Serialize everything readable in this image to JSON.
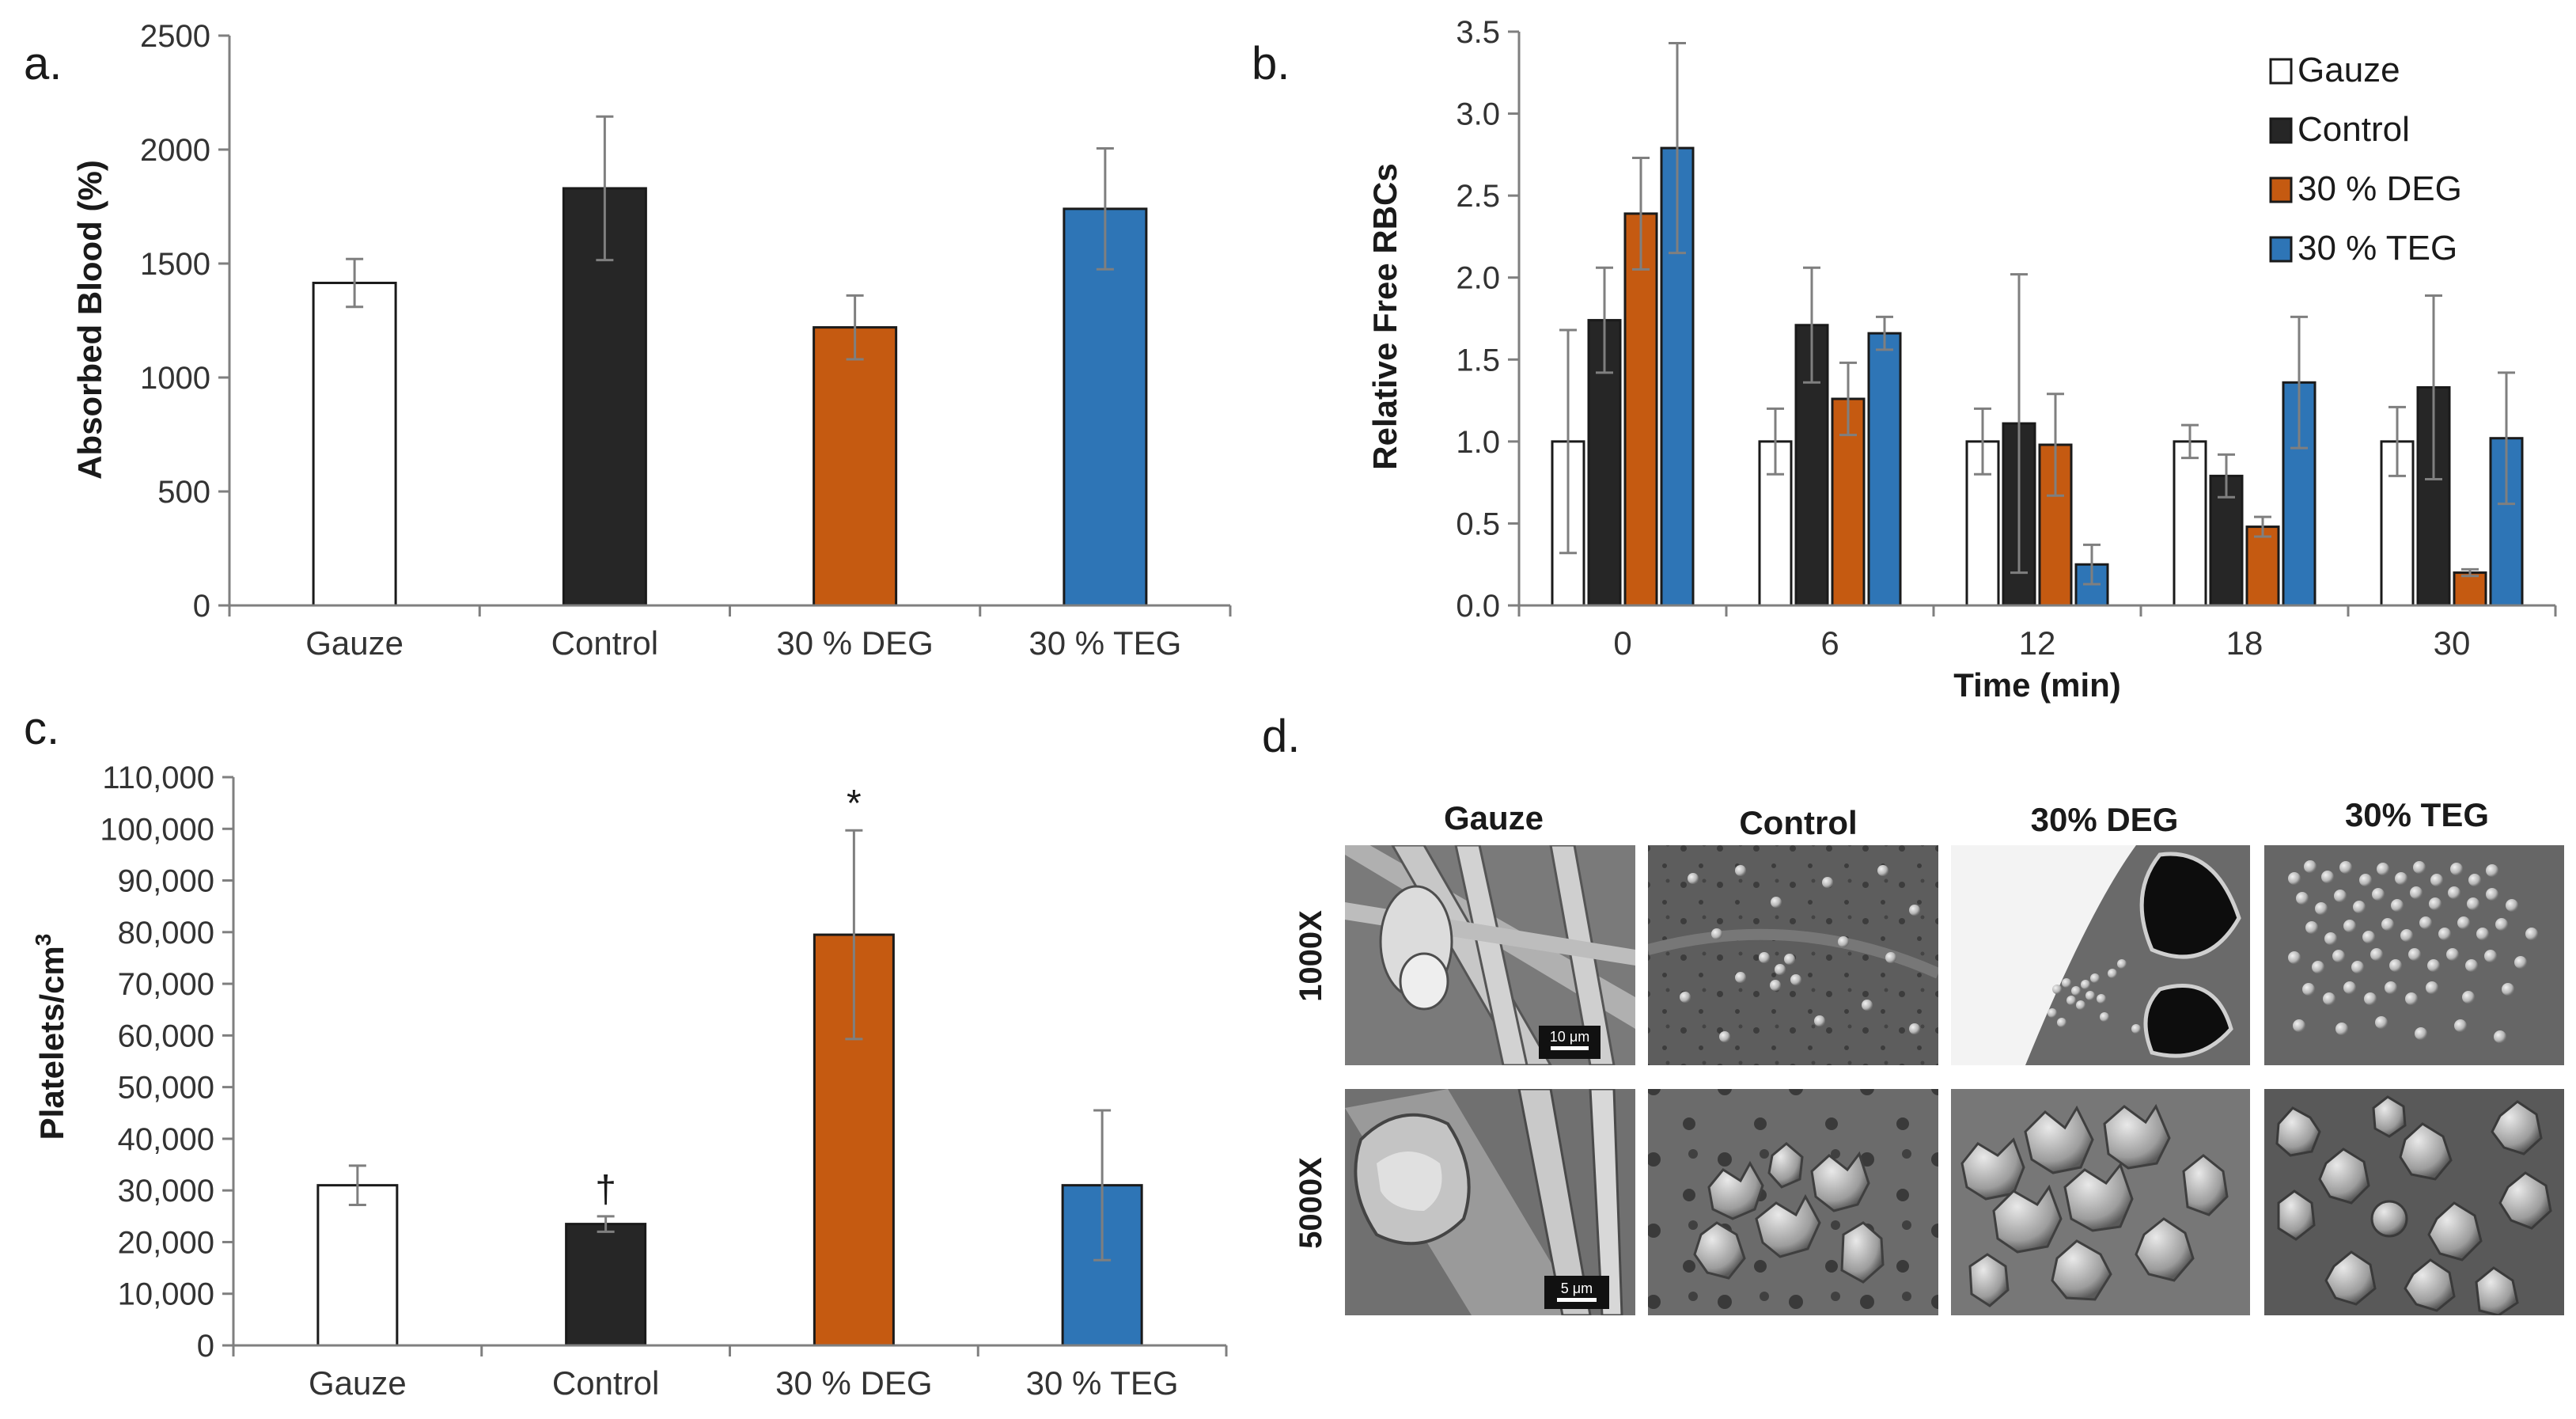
{
  "colors": {
    "Gauze": "#ffffff",
    "Control": "#262626",
    "30 % DEG": "#c55a11",
    "30 % TEG": "#2e75b6",
    "axis": "#7f7f7f",
    "error_bar": "#7f7f7f"
  },
  "chart_data": [
    {
      "panel": "a.",
      "type": "bar",
      "categories": [
        "Gauze",
        "Control",
        "30 % DEG",
        "30 % TEG"
      ],
      "values": [
        1415,
        1830,
        1220,
        1740
      ],
      "errors": [
        105,
        315,
        140,
        265
      ],
      "ylabel": "Absorbed Blood (%)",
      "xlabel": "",
      "ylim": [
        0,
        2500
      ],
      "yticks": [
        0,
        500,
        1000,
        1500,
        2000,
        2500
      ],
      "ytick_labels": [
        "0",
        "500",
        "1000",
        "1500",
        "2000",
        "2500"
      ],
      "grid": false
    },
    {
      "panel": "b.",
      "type": "bar",
      "categories": [
        "0",
        "6",
        "12",
        "18",
        "30"
      ],
      "series": [
        {
          "name": "Gauze",
          "values": [
            1.0,
            1.0,
            1.0,
            1.0,
            1.0
          ],
          "errors": [
            0.68,
            0.2,
            0.2,
            0.1,
            0.21
          ]
        },
        {
          "name": "Control",
          "values": [
            1.74,
            1.71,
            1.11,
            0.79,
            1.33
          ],
          "errors": [
            0.32,
            0.35,
            0.91,
            0.13,
            0.56
          ]
        },
        {
          "name": "30 % DEG",
          "values": [
            2.39,
            1.26,
            0.98,
            0.48,
            0.2
          ],
          "errors": [
            0.34,
            0.22,
            0.31,
            0.06,
            0.02
          ]
        },
        {
          "name": "30 % TEG",
          "values": [
            2.79,
            1.66,
            0.25,
            1.36,
            1.02
          ],
          "errors": [
            0.64,
            0.1,
            0.12,
            0.4,
            0.4
          ]
        }
      ],
      "ylabel": "Relative Free RBCs",
      "xlabel": "Time (min)",
      "ylim": [
        0,
        3.5
      ],
      "yticks": [
        0,
        0.5,
        1,
        1.5,
        2,
        2.5,
        3,
        3.5
      ],
      "ytick_labels": [
        "0.0",
        "0.5",
        "1.0",
        "1.5",
        "2.0",
        "2.5",
        "3.0",
        "3.5"
      ],
      "legend": [
        "Gauze",
        "Control",
        "30 % DEG",
        "30 % TEG"
      ],
      "legend_position": "top-right",
      "grid": false
    },
    {
      "panel": "c.",
      "type": "bar",
      "categories": [
        "Gauze",
        "Control",
        "30 % DEG",
        "30 % TEG"
      ],
      "values": [
        31000,
        23500,
        79500,
        31000
      ],
      "errors": [
        3800,
        1500,
        20200,
        14500
      ],
      "annotations": [
        "",
        "†",
        "*",
        ""
      ],
      "ylabel": "Platelets/cm",
      "ylabel_superscript": "3",
      "xlabel": "",
      "ylim": [
        0,
        110000
      ],
      "yticks": [
        0,
        10000,
        20000,
        30000,
        40000,
        50000,
        60000,
        70000,
        80000,
        90000,
        100000,
        110000
      ],
      "ytick_labels": [
        "0",
        "10,000",
        "20,000",
        "30,000",
        "40,000",
        "50,000",
        "60,000",
        "70,000",
        "80,000",
        "90,000",
        "100,000",
        "110,000"
      ],
      "grid": false
    }
  ],
  "panel_d": {
    "label": "d.",
    "columns": [
      "Gauze",
      "Control",
      "30% DEG",
      "30% TEG"
    ],
    "rows": [
      "1000X",
      "5000X"
    ],
    "scale_bars": [
      "10 μm",
      "5 μm"
    ]
  }
}
